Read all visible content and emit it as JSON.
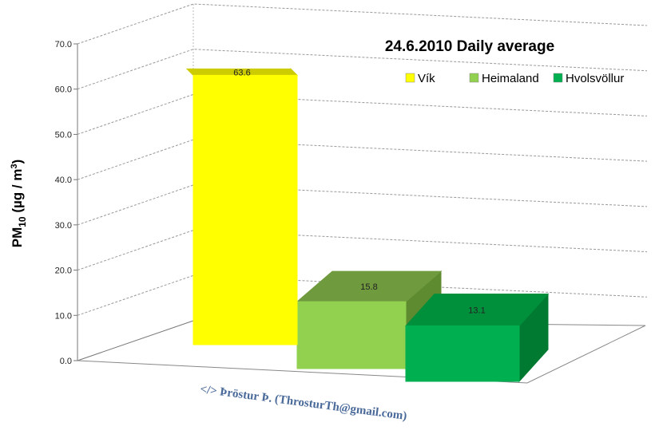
{
  "chart_data": {
    "type": "bar",
    "title": "24.6.2010 Daily average",
    "ylabel": {
      "main": "PM",
      "sub": "10",
      "unit_open": " (µg / m",
      "sup": "3",
      "unit_close": ")"
    },
    "ylim": [
      0,
      70
    ],
    "yticks": [
      "0.0",
      "10.0",
      "20.0",
      "30.0",
      "40.0",
      "50.0",
      "60.0",
      "70.0"
    ],
    "grid": true,
    "legend_position": "top-right",
    "series": [
      {
        "name": "Vík",
        "value": 63.6,
        "label": "63.6",
        "color": "#ffff00",
        "side": "#aaaa00",
        "top": "#cccc00"
      },
      {
        "name": "Heimaland",
        "value": 15.8,
        "label": "15.8",
        "color": "#92d050",
        "side": "#5e8a30",
        "top": "#6f9a3e"
      },
      {
        "name": "Hvolsvöllur",
        "value": 13.1,
        "label": "13.1",
        "color": "#00b050",
        "side": "#007a30",
        "top": "#00903c"
      }
    ]
  },
  "credit": "</> Þröstur Þ. (ThrosturTh@gmail.com)"
}
